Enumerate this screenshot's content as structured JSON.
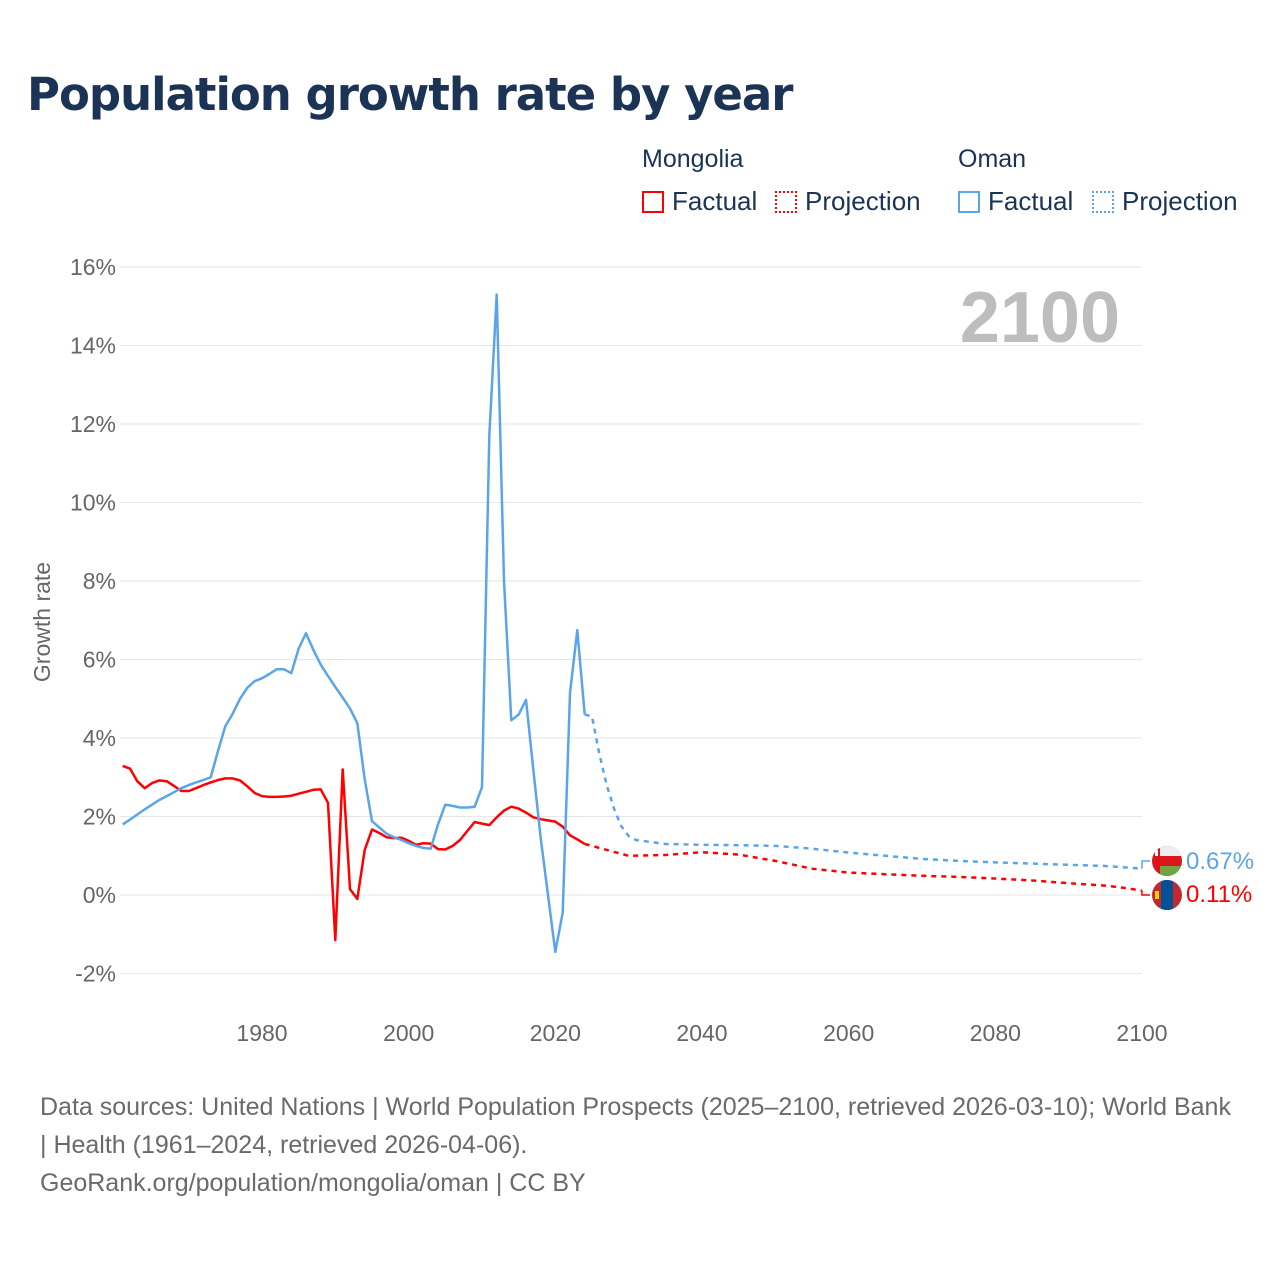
{
  "title": "Population growth rate by year",
  "legend": {
    "groups": [
      {
        "name": "Mongolia",
        "factual": "Factual",
        "projection": "Projection",
        "color": "#ff0000"
      },
      {
        "name": "Oman",
        "factual": "Factual",
        "projection": "Projection",
        "color": "#5aa5ea"
      }
    ]
  },
  "footer": {
    "sources": "Data sources: United Nations | World Population Prospects (2025–2100, retrieved 2026-03-10); World Bank | Health (1961–2024, retrieved 2026-04-06).",
    "credit": "GeoRank.org/population/mongolia/oman | CC BY"
  },
  "chart_data": {
    "type": "line",
    "title": "Population growth rate by year",
    "ylabel": "Growth rate",
    "xlabel": "",
    "year_watermark": "2100",
    "xlim": [
      1961,
      2100
    ],
    "ylim": [
      -3,
      16.5
    ],
    "xticks": [
      1980,
      2000,
      2020,
      2040,
      2060,
      2080,
      2100
    ],
    "yticks": [
      -2,
      0,
      2,
      4,
      6,
      8,
      10,
      12,
      14,
      16
    ],
    "ytick_labels": [
      "-2%",
      "0%",
      "2%",
      "4%",
      "6%",
      "8%",
      "10%",
      "12%",
      "14%",
      "16%"
    ],
    "grid": true,
    "series": [
      {
        "name": "Mongolia",
        "color": "#ff0000",
        "end_label": "0.11%",
        "factual": {
          "start": 1961,
          "values": [
            3.29,
            3.22,
            2.9,
            2.72,
            2.85,
            2.92,
            2.9,
            2.78,
            2.65,
            2.65,
            2.72,
            2.8,
            2.87,
            2.93,
            2.97,
            2.97,
            2.92,
            2.77,
            2.6,
            2.52,
            2.5,
            2.5,
            2.51,
            2.53,
            2.58,
            2.63,
            2.68,
            2.69,
            2.35,
            -1.15,
            3.2,
            0.15,
            -0.1,
            1.15,
            1.67,
            1.58,
            1.47,
            1.45,
            1.46,
            1.38,
            1.28,
            1.32,
            1.31,
            1.17,
            1.16,
            1.25,
            1.4,
            1.63,
            1.86,
            1.82,
            1.78,
            1.98,
            2.15,
            2.25,
            2.2,
            2.1,
            1.98,
            1.93,
            1.9,
            1.87,
            1.74,
            1.52,
            1.42,
            1.3
          ]
        },
        "projection": {
          "x": [
            2024,
            2025,
            2027,
            2030,
            2035,
            2040,
            2045,
            2050,
            2055,
            2060,
            2065,
            2070,
            2075,
            2080,
            2085,
            2090,
            2095,
            2098,
            2100
          ],
          "values": [
            1.3,
            1.25,
            1.15,
            1.0,
            1.02,
            1.09,
            1.03,
            0.87,
            0.67,
            0.57,
            0.53,
            0.49,
            0.46,
            0.42,
            0.37,
            0.3,
            0.24,
            0.17,
            0.11
          ]
        }
      },
      {
        "name": "Oman",
        "color": "#5aa5ea",
        "end_label": "0.67%",
        "factual": {
          "start": 1961,
          "values": [
            1.8,
            1.92,
            2.05,
            2.18,
            2.3,
            2.42,
            2.52,
            2.62,
            2.72,
            2.8,
            2.87,
            2.93,
            3.0,
            3.67,
            4.3,
            4.62,
            5.0,
            5.28,
            5.45,
            5.52,
            5.63,
            5.75,
            5.75,
            5.65,
            6.28,
            6.67,
            6.25,
            5.87,
            5.58,
            5.3,
            5.03,
            4.75,
            4.38,
            2.95,
            1.88,
            1.72,
            1.56,
            1.47,
            1.4,
            1.32,
            1.25,
            1.2,
            1.18,
            1.8,
            2.3,
            2.27,
            2.23,
            2.23,
            2.25,
            2.75,
            11.7,
            15.3,
            8.0,
            4.45,
            4.6,
            4.97,
            3.2,
            1.45,
            0.0,
            -1.45,
            -0.45,
            5.15,
            6.75,
            4.6
          ]
        },
        "projection": {
          "x": [
            2024,
            2025,
            2026,
            2027,
            2028,
            2029,
            2030,
            2031,
            2035,
            2040,
            2045,
            2050,
            2055,
            2060,
            2065,
            2070,
            2075,
            2080,
            2085,
            2090,
            2095,
            2100
          ],
          "values": [
            4.6,
            4.55,
            3.6,
            2.8,
            2.2,
            1.75,
            1.5,
            1.4,
            1.3,
            1.28,
            1.27,
            1.25,
            1.18,
            1.08,
            1.0,
            0.92,
            0.87,
            0.83,
            0.8,
            0.77,
            0.74,
            0.67
          ]
        }
      }
    ]
  }
}
